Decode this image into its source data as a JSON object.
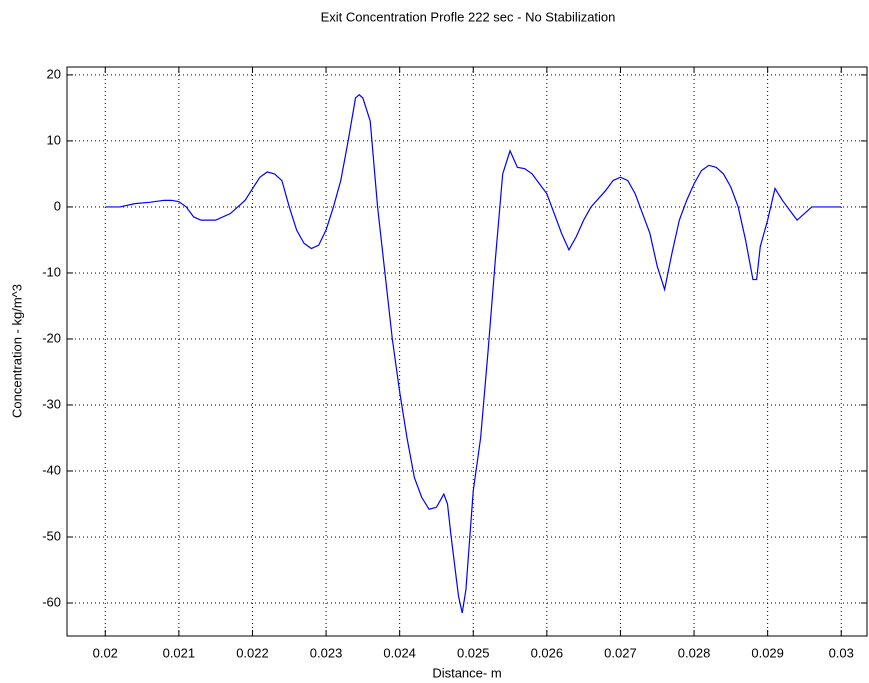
{
  "chart_data": {
    "type": "line",
    "title": "Exit Concentration Profle 222 sec - No Stabilization",
    "x_label": "Distance- m",
    "y_label": "Concentration - kg/m^3",
    "grid": true,
    "xlim": [
      0.01948,
      0.03035
    ],
    "ylim": [
      -65,
      21.2
    ],
    "xticks": [
      0.02,
      0.021,
      0.022,
      0.023,
      0.024,
      0.025,
      0.026,
      0.027,
      0.028,
      0.029,
      0.03
    ],
    "yticks": [
      -60,
      -50,
      -40,
      -30,
      -20,
      -10,
      0,
      10,
      20
    ],
    "series": [
      {
        "color": "#0000ff",
        "x": [
          0.02,
          0.0202,
          0.0204,
          0.0206,
          0.0208,
          0.0209,
          0.021,
          0.0211,
          0.0212,
          0.0213,
          0.0215,
          0.0217,
          0.0219,
          0.0221,
          0.0222,
          0.0223,
          0.0224,
          0.0225,
          0.0226,
          0.0227,
          0.0228,
          0.0229,
          0.023,
          0.0231,
          0.0232,
          0.0233,
          0.0234,
          0.02345,
          0.0235,
          0.0236,
          0.0237,
          0.0238,
          0.0239,
          0.024,
          0.0241,
          0.0242,
          0.0243,
          0.0244,
          0.0245,
          0.0246,
          0.02465,
          0.0247,
          0.0248,
          0.02485,
          0.0249,
          0.025,
          0.0251,
          0.0252,
          0.0253,
          0.0254,
          0.0255,
          0.0256,
          0.0257,
          0.0258,
          0.0259,
          0.026,
          0.0261,
          0.0262,
          0.0263,
          0.0264,
          0.0265,
          0.0266,
          0.0268,
          0.0269,
          0.027,
          0.0271,
          0.0272,
          0.0273,
          0.0274,
          0.0275,
          0.0276,
          0.0277,
          0.0278,
          0.0279,
          0.028,
          0.0281,
          0.0282,
          0.0283,
          0.0284,
          0.0285,
          0.0286,
          0.0287,
          0.0288,
          0.02885,
          0.0289,
          0.029,
          0.0291,
          0.0292,
          0.0293,
          0.0294,
          0.0295,
          0.0296,
          0.0297,
          0.03
        ],
        "values": [
          0,
          0,
          0.5,
          0.7,
          1,
          1,
          0.8,
          0,
          -1.5,
          -2,
          -2,
          -1,
          1,
          4.5,
          5.3,
          5,
          4,
          0,
          -3.5,
          -5.5,
          -6.3,
          -5.8,
          -3.5,
          0,
          4,
          10,
          16.5,
          17,
          16.5,
          13,
          0,
          -10,
          -20,
          -28,
          -35,
          -41,
          -44,
          -45.8,
          -45.5,
          -43.5,
          -45,
          -50,
          -59,
          -61.5,
          -58,
          -43,
          -35,
          -22,
          -8,
          5,
          8.5,
          6,
          5.8,
          5,
          3.5,
          2,
          -1,
          -4,
          -6.5,
          -4.5,
          -2,
          0,
          2.5,
          4,
          4.5,
          4,
          2,
          -1,
          -4,
          -9,
          -12.5,
          -7,
          -2,
          1,
          3.5,
          5.5,
          6.3,
          6,
          5,
          3,
          0,
          -5,
          -11,
          -11,
          -6,
          -2,
          2.8,
          1,
          -0.5,
          -2,
          -1,
          0,
          0,
          0
        ]
      }
    ]
  }
}
